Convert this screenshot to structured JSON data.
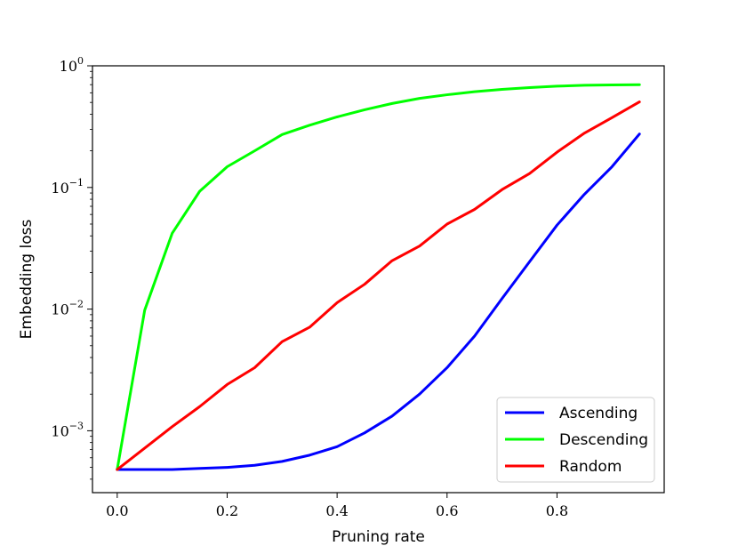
{
  "chart_data": {
    "type": "line",
    "title": "",
    "xlabel": "Pruning rate",
    "ylabel": "Embedding loss",
    "xlim": [
      -0.045,
      0.995
    ],
    "ylim": [
      0.00031,
      1.0
    ],
    "yscale": "log",
    "grid": false,
    "legend_position": "lower-right",
    "x_ticks": [
      0.0,
      0.2,
      0.4,
      0.6,
      0.8
    ],
    "x_tick_labels": [
      "0.0",
      "0.2",
      "0.4",
      "0.6",
      "0.8"
    ],
    "y_ticks": [
      0.001,
      0.01,
      0.1,
      1.0
    ],
    "y_tick_labels": [
      {
        "base": "10",
        "exp": "−3"
      },
      {
        "base": "10",
        "exp": "−2"
      },
      {
        "base": "10",
        "exp": "−1"
      },
      {
        "base": "10",
        "exp": "0"
      }
    ],
    "x": [
      0.0,
      0.05,
      0.1,
      0.15,
      0.2,
      0.25,
      0.3,
      0.35,
      0.4,
      0.45,
      0.5,
      0.55,
      0.6,
      0.65,
      0.7,
      0.75,
      0.8,
      0.85,
      0.9,
      0.95
    ],
    "series": [
      {
        "name": "Ascending",
        "color": "#0000ff",
        "values": [
          0.00048,
          0.00048,
          0.00048,
          0.00049,
          0.0005,
          0.00052,
          0.00056,
          0.00063,
          0.00074,
          0.00096,
          0.00132,
          0.002,
          0.0033,
          0.006,
          0.0122,
          0.0245,
          0.049,
          0.088,
          0.148,
          0.275
        ]
      },
      {
        "name": "Descending",
        "color": "#00ff00",
        "values": [
          0.00048,
          0.0098,
          0.042,
          0.093,
          0.148,
          0.2,
          0.272,
          0.325,
          0.38,
          0.435,
          0.49,
          0.54,
          0.578,
          0.612,
          0.64,
          0.662,
          0.68,
          0.692,
          0.697,
          0.7
        ]
      },
      {
        "name": "Random",
        "color": "#ff0000",
        "values": [
          0.00048,
          0.00072,
          0.00108,
          0.00158,
          0.0024,
          0.0033,
          0.0054,
          0.0071,
          0.0113,
          0.016,
          0.025,
          0.033,
          0.05,
          0.066,
          0.096,
          0.13,
          0.195,
          0.28,
          0.375,
          0.505
        ]
      }
    ]
  }
}
